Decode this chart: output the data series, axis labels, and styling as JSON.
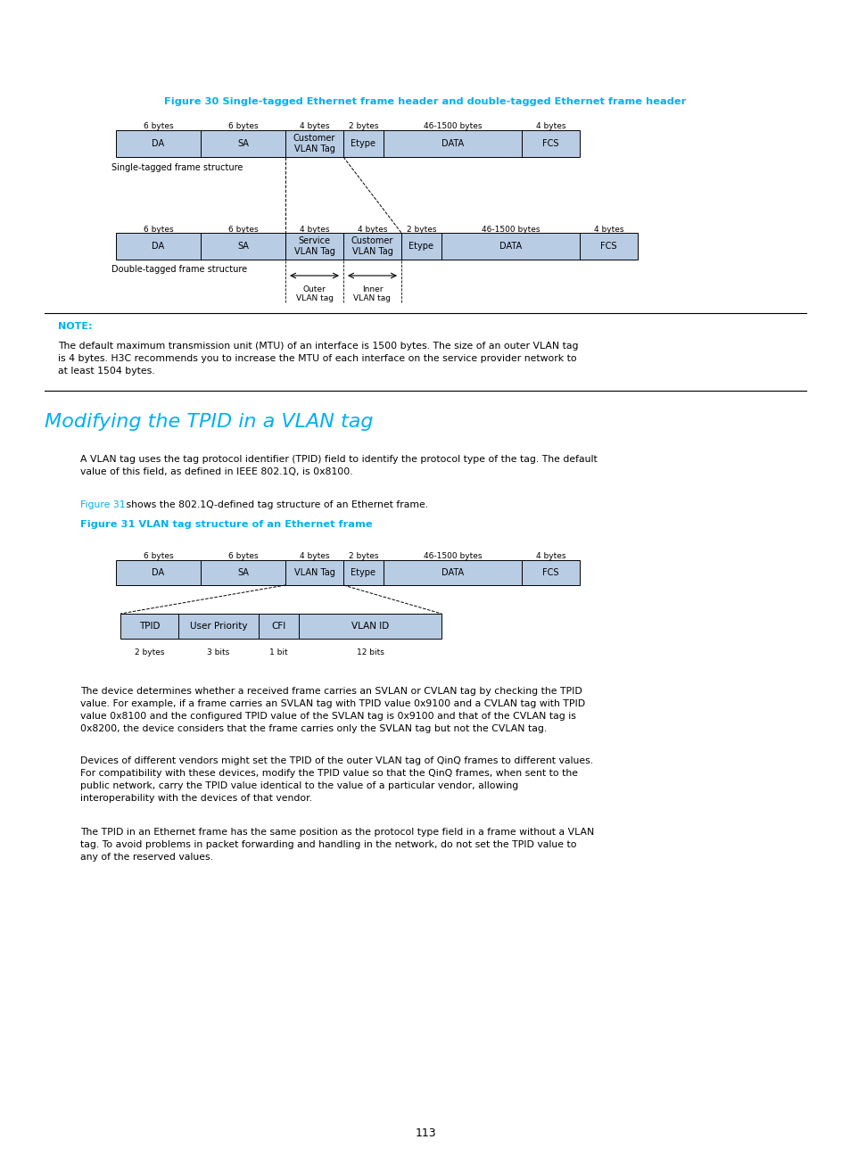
{
  "page_bg": "#ffffff",
  "fig30_title": "Figure 30 Single-tagged Ethernet frame header and double-tagged Ethernet frame header",
  "fig31_title": "Figure 31 VLAN tag structure of an Ethernet frame",
  "section_title": "Modifying the TPID in a VLAN tag",
  "note_label": "NOTE:",
  "note_text": "The default maximum transmission unit (MTU) of an interface is 1500 bytes. The size of an outer VLAN tag\nis 4 bytes. H3C recommends you to increase the MTU of each interface on the service provider network to\nat least 1504 bytes.",
  "para1": "A VLAN tag uses the tag protocol identifier (TPID) field to identify the protocol type of the tag. The default\nvalue of this field, as defined in IEEE 802.1Q, is 0x8100.",
  "para2_prefix": "Figure 31",
  "para2_suffix": " shows the 802.1Q-defined tag structure of an Ethernet frame.",
  "para3": "The device determines whether a received frame carries an SVLAN or CVLAN tag by checking the TPID\nvalue. For example, if a frame carries an SVLAN tag with TPID value 0x9100 and a CVLAN tag with TPID\nvalue 0x8100 and the configured TPID value of the SVLAN tag is 0x9100 and that of the CVLAN tag is\n0x8200, the device considers that the frame carries only the SVLAN tag but not the CVLAN tag.",
  "para4": "Devices of different vendors might set the TPID of the outer VLAN tag of QinQ frames to different values.\nFor compatibility with these devices, modify the TPID value so that the QinQ frames, when sent to the\npublic network, carry the TPID value identical to the value of a particular vendor, allowing\ninteroperability with the devices of that vendor.",
  "para5": "The TPID in an Ethernet frame has the same position as the protocol type field in a frame without a VLAN\ntag. To avoid problems in packet forwarding and handling in the network, do not set the TPID value to\nany of the reserved values.",
  "page_num": "113",
  "box_fill": "#b8cce4",
  "box_edge": "#000000",
  "cyan_color": "#00b0f0",
  "title_color": "#00b0f0"
}
